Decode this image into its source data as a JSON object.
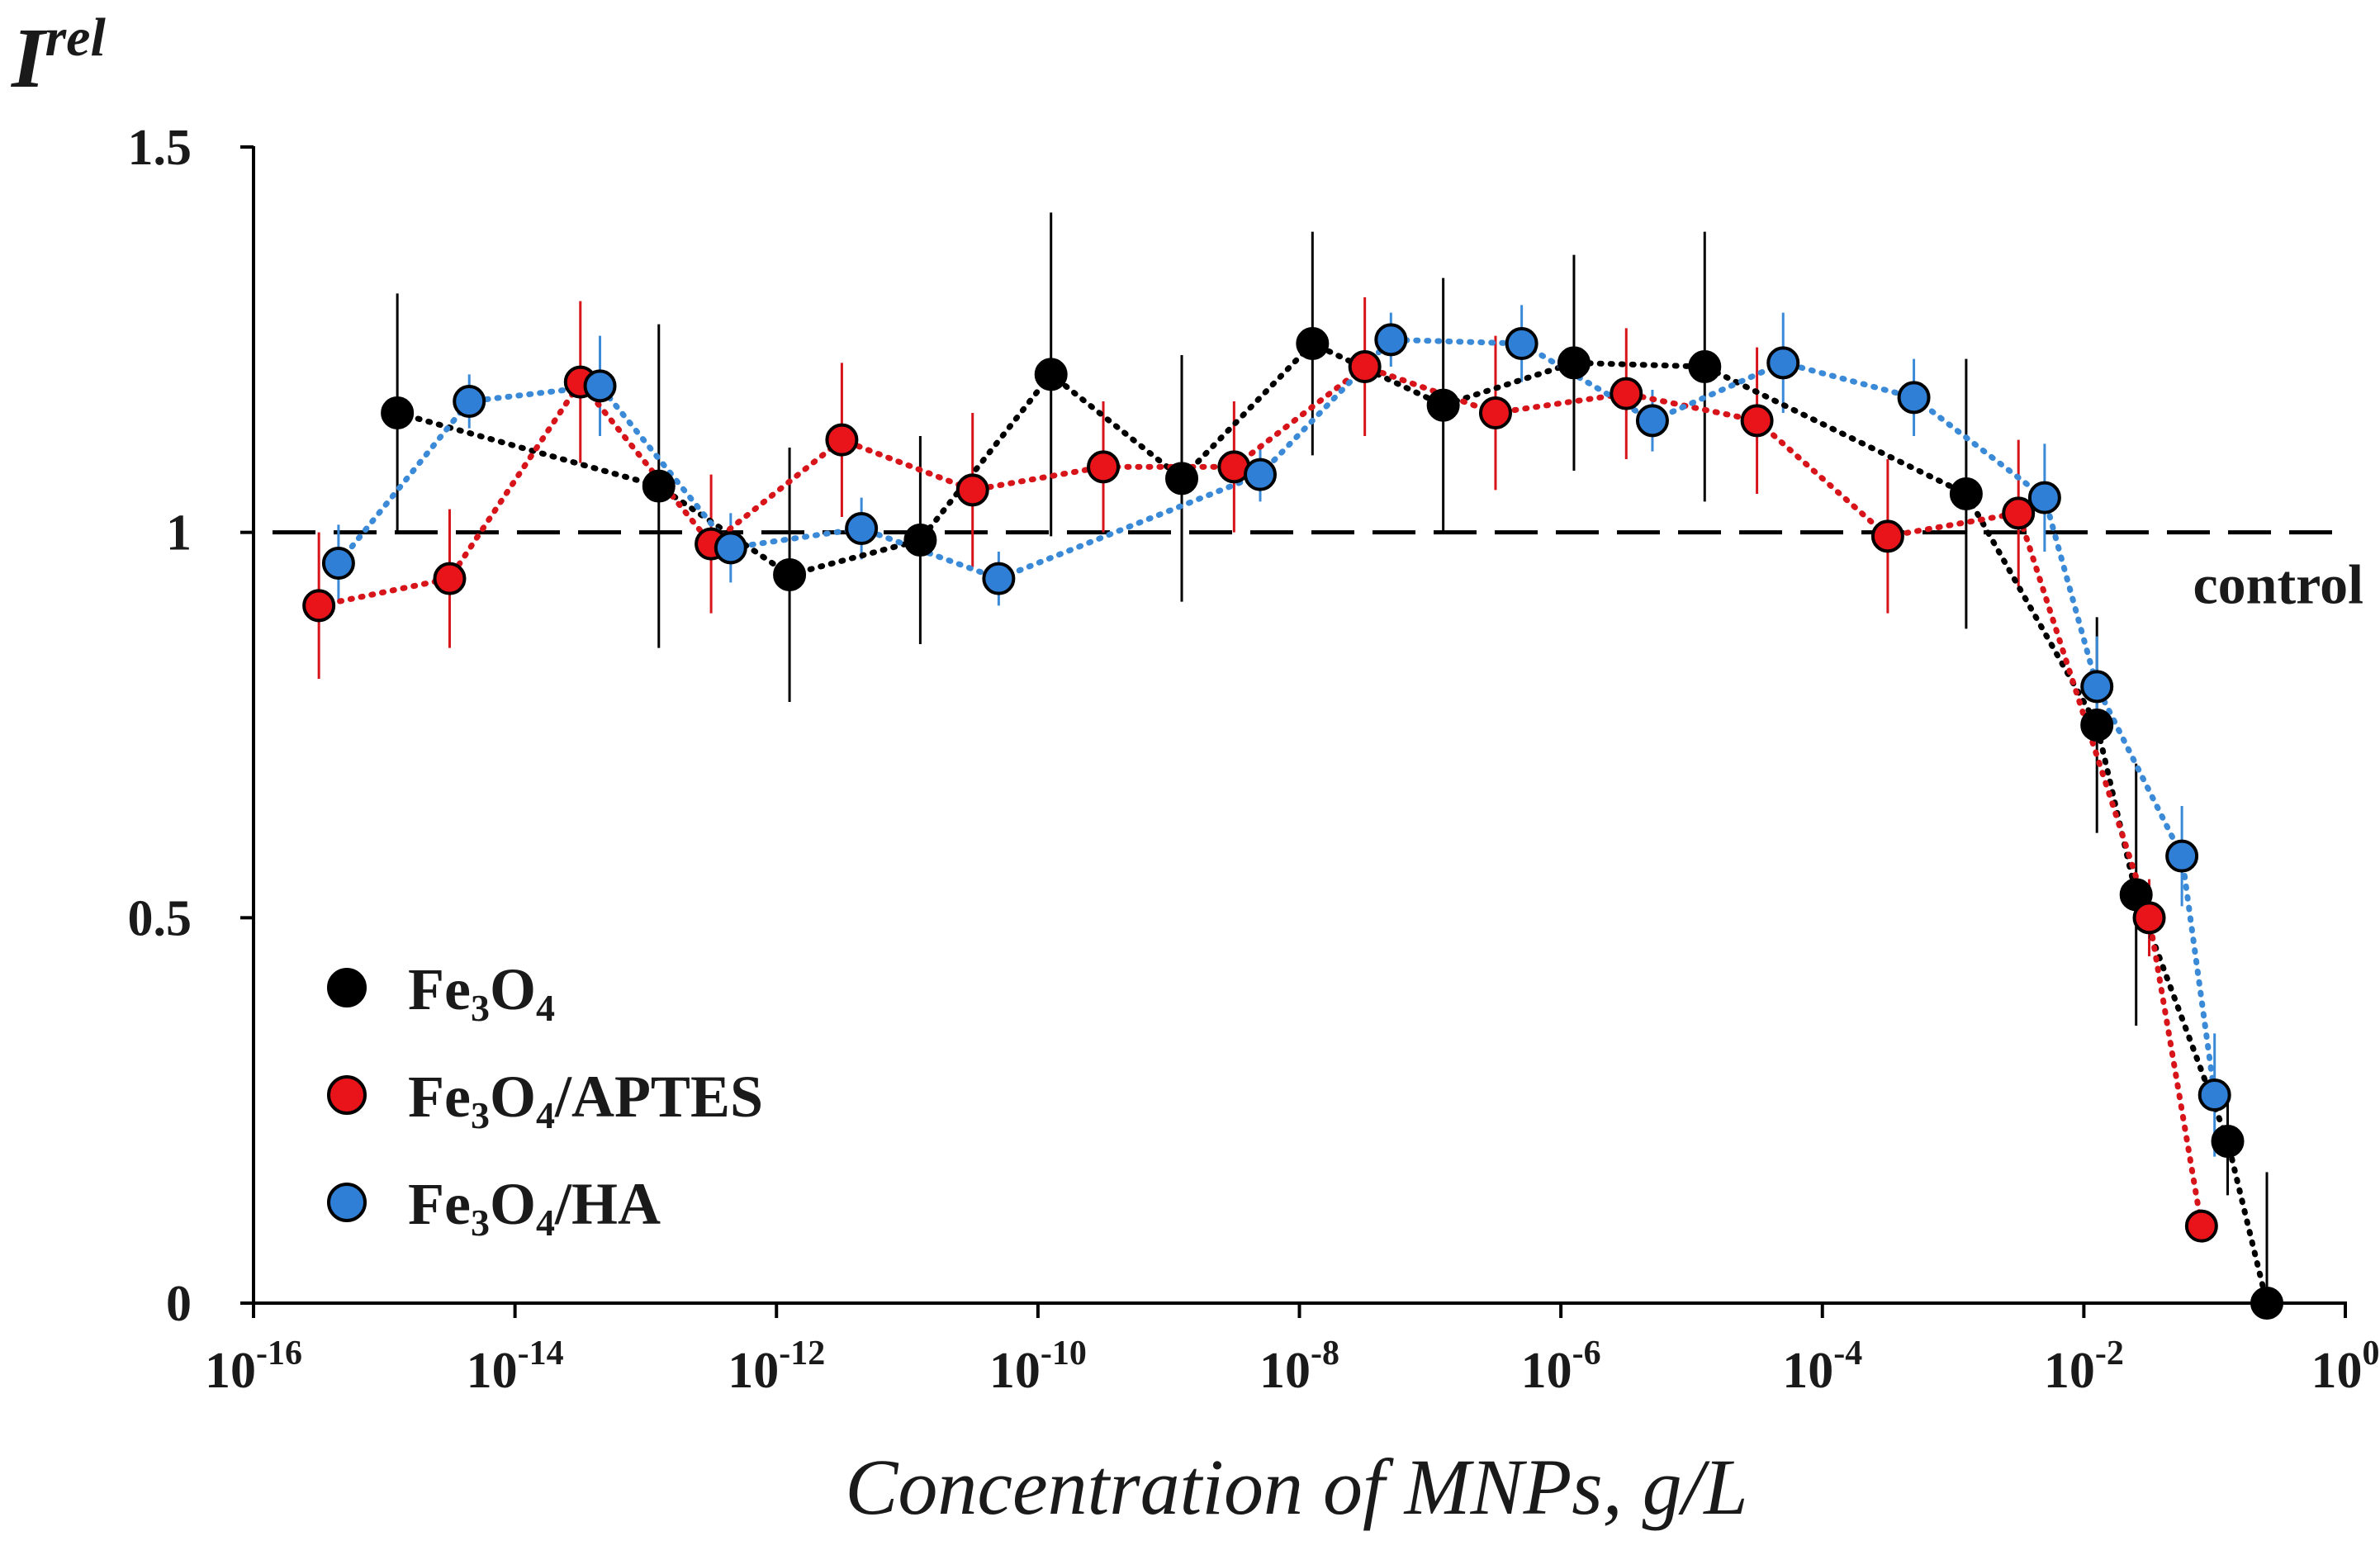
{
  "chart_data": {
    "type": "scatter",
    "title": "",
    "xlabel": "Concentration of MNPs, g/L",
    "ylabel": {
      "base": "I",
      "sup": "rel"
    },
    "xscale": "log",
    "xlim_exp": [
      -16,
      0
    ],
    "ylim": [
      0,
      1.5
    ],
    "yticks": [
      {
        "value": 0,
        "label": "0"
      },
      {
        "value": 0.5,
        "label": "0.5"
      },
      {
        "value": 1,
        "label": "1"
      },
      {
        "value": 1.5,
        "label": "1.5"
      }
    ],
    "xticks": [
      {
        "exp": -16,
        "base": "10",
        "sup": "-16"
      },
      {
        "exp": -14,
        "base": "10",
        "sup": "-14"
      },
      {
        "exp": -12,
        "base": "10",
        "sup": "-12"
      },
      {
        "exp": -10,
        "base": "10",
        "sup": "-10"
      },
      {
        "exp": -8,
        "base": "10",
        "sup": "-8"
      },
      {
        "exp": -6,
        "base": "10",
        "sup": "-6"
      },
      {
        "exp": -4,
        "base": "10",
        "sup": "-4"
      },
      {
        "exp": -2,
        "base": "10",
        "sup": "-2"
      },
      {
        "exp": 0,
        "base": "10",
        "sup": "0"
      }
    ],
    "reference_line": {
      "y": 1,
      "label": "control",
      "style": "dashed"
    },
    "grid": false,
    "legend_position": "bottom-left",
    "series": [
      {
        "name": "Fe3O4",
        "legend": [
          {
            "t": "Fe",
            "s": ""
          },
          {
            "t": "3",
            "s": "sub"
          },
          {
            "t": "O",
            "s": ""
          },
          {
            "t": "4",
            "s": "sub"
          }
        ],
        "color": "#000000",
        "line_color": "#000000",
        "points": [
          {
            "logx": -14.9,
            "y": 1.155,
            "err": 0.155
          },
          {
            "logx": -12.9,
            "y": 1.06,
            "err": 0.21
          },
          {
            "logx": -11.9,
            "y": 0.945,
            "err": 0.165
          },
          {
            "logx": -10.9,
            "y": 0.99,
            "err": 0.135
          },
          {
            "logx": -9.9,
            "y": 1.205,
            "err": 0.21
          },
          {
            "logx": -8.9,
            "y": 1.07,
            "err": 0.16
          },
          {
            "logx": -7.9,
            "y": 1.245,
            "err": 0.145
          },
          {
            "logx": -6.9,
            "y": 1.165,
            "err": 0.165
          },
          {
            "logx": -5.9,
            "y": 1.22,
            "err": 0.14
          },
          {
            "logx": -4.9,
            "y": 1.215,
            "err": 0.175
          },
          {
            "logx": -2.9,
            "y": 1.05,
            "err": 0.175
          },
          {
            "logx": -1.9,
            "y": 0.75,
            "err": 0.14
          },
          {
            "logx": -1.6,
            "y": 0.53,
            "err": 0.17
          },
          {
            "logx": -0.9,
            "y": 0.21,
            "err": 0.07
          },
          {
            "logx": -0.6,
            "y": 0.0,
            "err": 0.17
          }
        ]
      },
      {
        "name": "Fe3O4/APTES",
        "legend": [
          {
            "t": "Fe",
            "s": ""
          },
          {
            "t": "3",
            "s": "sub"
          },
          {
            "t": "O",
            "s": ""
          },
          {
            "t": "4",
            "s": "sub"
          },
          {
            "t": "/APTES",
            "s": ""
          }
        ],
        "color": "#e8141a",
        "line_color": "#d7141a",
        "points": [
          {
            "logx": -15.5,
            "y": 0.905,
            "err": 0.095
          },
          {
            "logx": -14.5,
            "y": 0.94,
            "err": 0.09
          },
          {
            "logx": -13.5,
            "y": 1.195,
            "err": 0.105
          },
          {
            "logx": -12.5,
            "y": 0.985,
            "err": 0.09
          },
          {
            "logx": -11.5,
            "y": 1.12,
            "err": 0.1
          },
          {
            "logx": -10.5,
            "y": 1.055,
            "err": 0.1
          },
          {
            "logx": -9.5,
            "y": 1.085,
            "err": 0.085
          },
          {
            "logx": -8.5,
            "y": 1.085,
            "err": 0.085
          },
          {
            "logx": -7.5,
            "y": 1.215,
            "err": 0.09
          },
          {
            "logx": -6.5,
            "y": 1.155,
            "err": 0.1
          },
          {
            "logx": -5.5,
            "y": 1.18,
            "err": 0.085
          },
          {
            "logx": -4.5,
            "y": 1.145,
            "err": 0.095
          },
          {
            "logx": -3.5,
            "y": 0.995,
            "err": 0.1
          },
          {
            "logx": -2.5,
            "y": 1.025,
            "err": 0.095
          },
          {
            "logx": -1.5,
            "y": 0.5,
            "err": 0.05
          },
          {
            "logx": -1.1,
            "y": 0.1,
            "err": 0
          }
        ]
      },
      {
        "name": "Fe3O4/HA",
        "legend": [
          {
            "t": "Fe",
            "s": ""
          },
          {
            "t": "3",
            "s": "sub"
          },
          {
            "t": "O",
            "s": ""
          },
          {
            "t": "4",
            "s": "sub"
          },
          {
            "t": "/HA",
            "s": ""
          }
        ],
        "color": "#2f7fd6",
        "line_color": "#3a8ad8",
        "points": [
          {
            "logx": -15.35,
            "y": 0.96,
            "err": 0.05
          },
          {
            "logx": -14.35,
            "y": 1.17,
            "err": 0.035
          },
          {
            "logx": -13.35,
            "y": 1.19,
            "err": 0.065
          },
          {
            "logx": -12.35,
            "y": 0.98,
            "err": 0.045
          },
          {
            "logx": -11.35,
            "y": 1.005,
            "err": 0.04
          },
          {
            "logx": -10.3,
            "y": 0.94,
            "err": 0.035
          },
          {
            "logx": -8.3,
            "y": 1.075,
            "err": 0.035
          },
          {
            "logx": -7.3,
            "y": 1.25,
            "err": 0.035
          },
          {
            "logx": -6.3,
            "y": 1.245,
            "err": 0.05
          },
          {
            "logx": -5.3,
            "y": 1.145,
            "err": 0.04
          },
          {
            "logx": -4.3,
            "y": 1.22,
            "err": 0.065
          },
          {
            "logx": -3.3,
            "y": 1.175,
            "err": 0.05
          },
          {
            "logx": -2.3,
            "y": 1.045,
            "err": 0.07
          },
          {
            "logx": -1.9,
            "y": 0.8,
            "err": 0.065
          },
          {
            "logx": -1.25,
            "y": 0.58,
            "err": 0.065
          },
          {
            "logx": -1.0,
            "y": 0.27,
            "err": 0.08
          }
        ]
      }
    ]
  }
}
